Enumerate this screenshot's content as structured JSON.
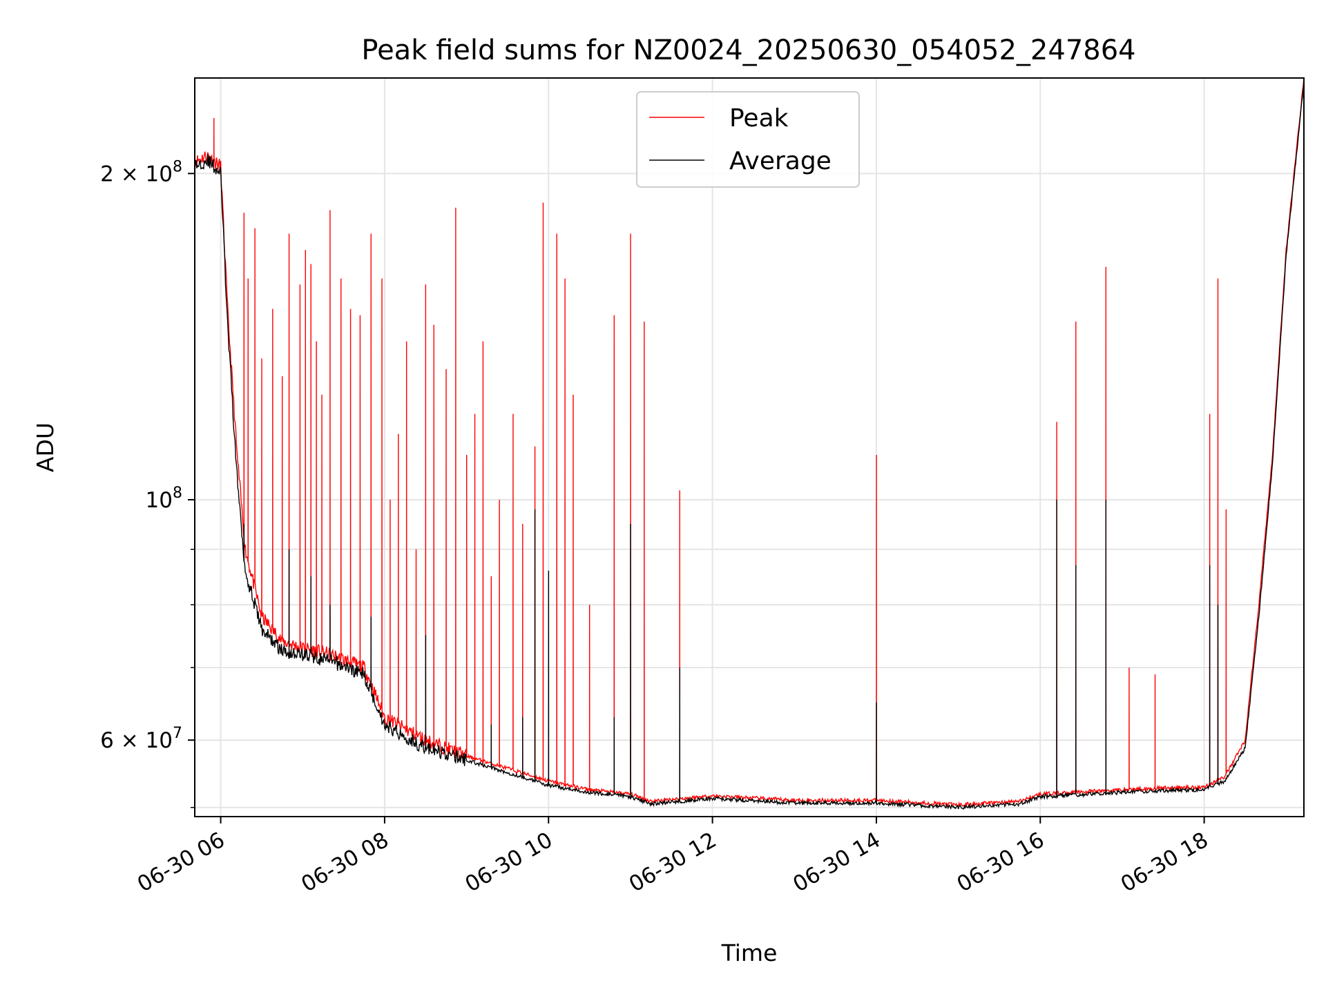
{
  "chart_data": {
    "type": "line",
    "title": "Peak field sums for NZ0024_20250630_054052_247864",
    "xlabel": "Time",
    "ylabel": "ADU",
    "y_scale": "log",
    "grid": true,
    "legend_placement": "top-center",
    "xlim": [
      "06-30 05:41",
      "06-30 19:13"
    ],
    "ylim": [
      51000000,
      245000000
    ],
    "x_ticks": [
      {
        "value": "06-30 06:00",
        "label": "06-30 06"
      },
      {
        "value": "06-30 08:00",
        "label": "06-30 08"
      },
      {
        "value": "06-30 10:00",
        "label": "06-30 10"
      },
      {
        "value": "06-30 12:00",
        "label": "06-30 12"
      },
      {
        "value": "06-30 14:00",
        "label": "06-30 14"
      },
      {
        "value": "06-30 16:00",
        "label": "06-30 16"
      },
      {
        "value": "06-30 18:00",
        "label": "06-30 18"
      }
    ],
    "y_ticks": [
      {
        "value": 60000000,
        "mantissa": "6 × 10",
        "exp": "7"
      },
      {
        "value": 100000000,
        "mantissa": "10",
        "exp": "8"
      },
      {
        "value": 200000000,
        "mantissa": "2 × 10",
        "exp": "8"
      }
    ],
    "y_minor_ticks": [
      70000000,
      80000000,
      90000000,
      300000000
    ],
    "series": [
      {
        "name": "Peak",
        "color": "#ff0000",
        "baseline": [
          [
            "06-30 05:41",
            205000000
          ],
          [
            "06-30 05:50",
            208000000
          ],
          [
            "06-30 06:00",
            203000000
          ],
          [
            "06-30 06:05",
            150000000
          ],
          [
            "06-30 06:12",
            110000000
          ],
          [
            "06-30 06:18",
            90000000
          ],
          [
            "06-30 06:30",
            78000000
          ],
          [
            "06-30 06:45",
            74000000
          ],
          [
            "06-30 07:00",
            73000000
          ],
          [
            "06-30 07:20",
            72000000
          ],
          [
            "06-30 07:45",
            70000000
          ],
          [
            "06-30 08:00",
            63000000
          ],
          [
            "06-30 08:30",
            60000000
          ],
          [
            "06-30 09:00",
            58000000
          ],
          [
            "06-30 09:30",
            56500000
          ],
          [
            "06-30 10:00",
            55000000
          ],
          [
            "06-30 10:30",
            54000000
          ],
          [
            "06-30 11:00",
            53500000
          ],
          [
            "06-30 11:15",
            52700000
          ],
          [
            "06-30 12:00",
            53300000
          ],
          [
            "06-30 13:00",
            52800000
          ],
          [
            "06-30 14:00",
            52800000
          ],
          [
            "06-30 15:00",
            52300000
          ],
          [
            "06-30 15:45",
            52700000
          ],
          [
            "06-30 16:00",
            53500000
          ],
          [
            "06-30 17:00",
            54000000
          ],
          [
            "06-30 17:30",
            54200000
          ],
          [
            "06-30 18:00",
            54300000
          ],
          [
            "06-30 18:15",
            55500000
          ],
          [
            "06-30 18:30",
            60000000
          ],
          [
            "06-30 18:40",
            80000000
          ],
          [
            "06-30 18:50",
            110000000
          ],
          [
            "06-30 19:00",
            170000000
          ],
          [
            "06-30 19:13",
            245000000
          ]
        ],
        "spikes": [
          [
            "06-30 05:55",
            225000000
          ],
          [
            "06-30 06:17",
            184000000
          ],
          [
            "06-30 06:20",
            160000000
          ],
          [
            "06-30 06:25",
            178000000
          ],
          [
            "06-30 06:30",
            135000000
          ],
          [
            "06-30 06:38",
            150000000
          ],
          [
            "06-30 06:45",
            130000000
          ],
          [
            "06-30 06:50",
            176000000
          ],
          [
            "06-30 06:58",
            158000000
          ],
          [
            "06-30 07:02",
            170000000
          ],
          [
            "06-30 07:06",
            165000000
          ],
          [
            "06-30 07:10",
            140000000
          ],
          [
            "06-30 07:14",
            125000000
          ],
          [
            "06-30 07:20",
            185000000
          ],
          [
            "06-30 07:28",
            160000000
          ],
          [
            "06-30 07:35",
            150000000
          ],
          [
            "06-30 07:42",
            148000000
          ],
          [
            "06-30 07:50",
            176000000
          ],
          [
            "06-30 07:58",
            160000000
          ],
          [
            "06-30 08:04",
            100000000
          ],
          [
            "06-30 08:10",
            115000000
          ],
          [
            "06-30 08:16",
            140000000
          ],
          [
            "06-30 08:23",
            90000000
          ],
          [
            "06-30 08:30",
            158000000
          ],
          [
            "06-30 08:36",
            145000000
          ],
          [
            "06-30 08:45",
            132000000
          ],
          [
            "06-30 08:52",
            186000000
          ],
          [
            "06-30 09:00",
            110000000
          ],
          [
            "06-30 09:06",
            120000000
          ],
          [
            "06-30 09:12",
            140000000
          ],
          [
            "06-30 09:18",
            85000000
          ],
          [
            "06-30 09:24",
            100000000
          ],
          [
            "06-30 09:34",
            120000000
          ],
          [
            "06-30 09:41",
            95000000
          ],
          [
            "06-30 09:50",
            112000000
          ],
          [
            "06-30 09:56",
            188000000
          ],
          [
            "06-30 10:06",
            176000000
          ],
          [
            "06-30 10:12",
            160000000
          ],
          [
            "06-30 10:18",
            125000000
          ],
          [
            "06-30 10:30",
            80000000
          ],
          [
            "06-30 10:48",
            148000000
          ],
          [
            "06-30 11:00",
            176000000
          ],
          [
            "06-30 11:10",
            146000000
          ],
          [
            "06-30 11:36",
            102000000
          ],
          [
            "06-30 14:00",
            110000000
          ],
          [
            "06-30 16:12",
            118000000
          ],
          [
            "06-30 16:26",
            146000000
          ],
          [
            "06-30 16:48",
            164000000
          ],
          [
            "06-30 17:05",
            70000000
          ],
          [
            "06-30 17:24",
            69000000
          ],
          [
            "06-30 18:04",
            120000000
          ],
          [
            "06-30 18:10",
            160000000
          ],
          [
            "06-30 18:16",
            98000000
          ]
        ]
      },
      {
        "name": "Average",
        "color": "#000000",
        "baseline": [
          [
            "06-30 05:41",
            203000000
          ],
          [
            "06-30 05:50",
            206000000
          ],
          [
            "06-30 06:00",
            200000000
          ],
          [
            "06-30 06:05",
            145000000
          ],
          [
            "06-30 06:12",
            105000000
          ],
          [
            "06-30 06:18",
            86000000
          ],
          [
            "06-30 06:30",
            76000000
          ],
          [
            "06-30 06:45",
            72500000
          ],
          [
            "06-30 07:00",
            72000000
          ],
          [
            "06-30 07:20",
            71000000
          ],
          [
            "06-30 07:45",
            69000000
          ],
          [
            "06-30 08:00",
            62000000
          ],
          [
            "06-30 08:30",
            59000000
          ],
          [
            "06-30 09:00",
            57500000
          ],
          [
            "06-30 09:30",
            56000000
          ],
          [
            "06-30 10:00",
            54500000
          ],
          [
            "06-30 10:30",
            53700000
          ],
          [
            "06-30 11:00",
            53200000
          ],
          [
            "06-30 11:15",
            52400000
          ],
          [
            "06-30 12:00",
            53000000
          ],
          [
            "06-30 13:00",
            52500000
          ],
          [
            "06-30 14:00",
            52500000
          ],
          [
            "06-30 15:00",
            52000000
          ],
          [
            "06-30 15:45",
            52400000
          ],
          [
            "06-30 16:00",
            53200000
          ],
          [
            "06-30 17:00",
            53700000
          ],
          [
            "06-30 17:30",
            53900000
          ],
          [
            "06-30 18:00",
            54000000
          ],
          [
            "06-30 18:15",
            55000000
          ],
          [
            "06-30 18:30",
            59000000
          ],
          [
            "06-30 18:40",
            78000000
          ],
          [
            "06-30 18:50",
            108000000
          ],
          [
            "06-30 19:00",
            168000000
          ],
          [
            "06-30 19:13",
            243000000
          ]
        ],
        "spikes": [
          [
            "06-30 06:17",
            95000000
          ],
          [
            "06-30 06:50",
            90000000
          ],
          [
            "06-30 07:06",
            85000000
          ],
          [
            "06-30 07:20",
            80000000
          ],
          [
            "06-30 07:50",
            78000000
          ],
          [
            "06-30 08:30",
            75000000
          ],
          [
            "06-30 09:18",
            62000000
          ],
          [
            "06-30 09:41",
            63000000
          ],
          [
            "06-30 09:50",
            98000000
          ],
          [
            "06-30 10:00",
            86000000
          ],
          [
            "06-30 10:48",
            63000000
          ],
          [
            "06-30 11:00",
            95000000
          ],
          [
            "06-30 11:36",
            70000000
          ],
          [
            "06-30 14:00",
            65000000
          ],
          [
            "06-30 16:12",
            100000000
          ],
          [
            "06-30 16:26",
            87000000
          ],
          [
            "06-30 16:48",
            100000000
          ],
          [
            "06-30 18:04",
            87000000
          ],
          [
            "06-30 18:10",
            80000000
          ]
        ]
      }
    ]
  }
}
